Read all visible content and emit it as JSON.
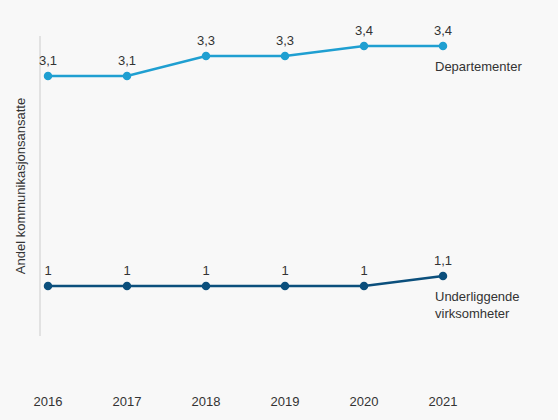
{
  "chart_data": {
    "type": "line",
    "y_label": "Andel kommunikasjonsansatte",
    "categories": [
      "2016",
      "2017",
      "2018",
      "2019",
      "2020",
      "2021"
    ],
    "series": [
      {
        "name": "Departementer",
        "color": "#1f9fd1",
        "values": [
          3.1,
          3.1,
          3.3,
          3.3,
          3.4,
          3.4
        ],
        "value_labels": [
          "3,1",
          "3,1",
          "3,3",
          "3,3",
          "3,4",
          "3,4"
        ]
      },
      {
        "name": "Underliggende virksomheter",
        "color": "#0b4f7c",
        "values": [
          1,
          1,
          1,
          1,
          1,
          1.1
        ],
        "value_labels": [
          "1",
          "1",
          "1",
          "1",
          "1",
          "1,1"
        ]
      }
    ],
    "ylim": [
      0.5,
      3.5
    ],
    "yticks": [],
    "data_labels": true,
    "tick_labels": "x",
    "grid": false,
    "marker": "circle"
  }
}
